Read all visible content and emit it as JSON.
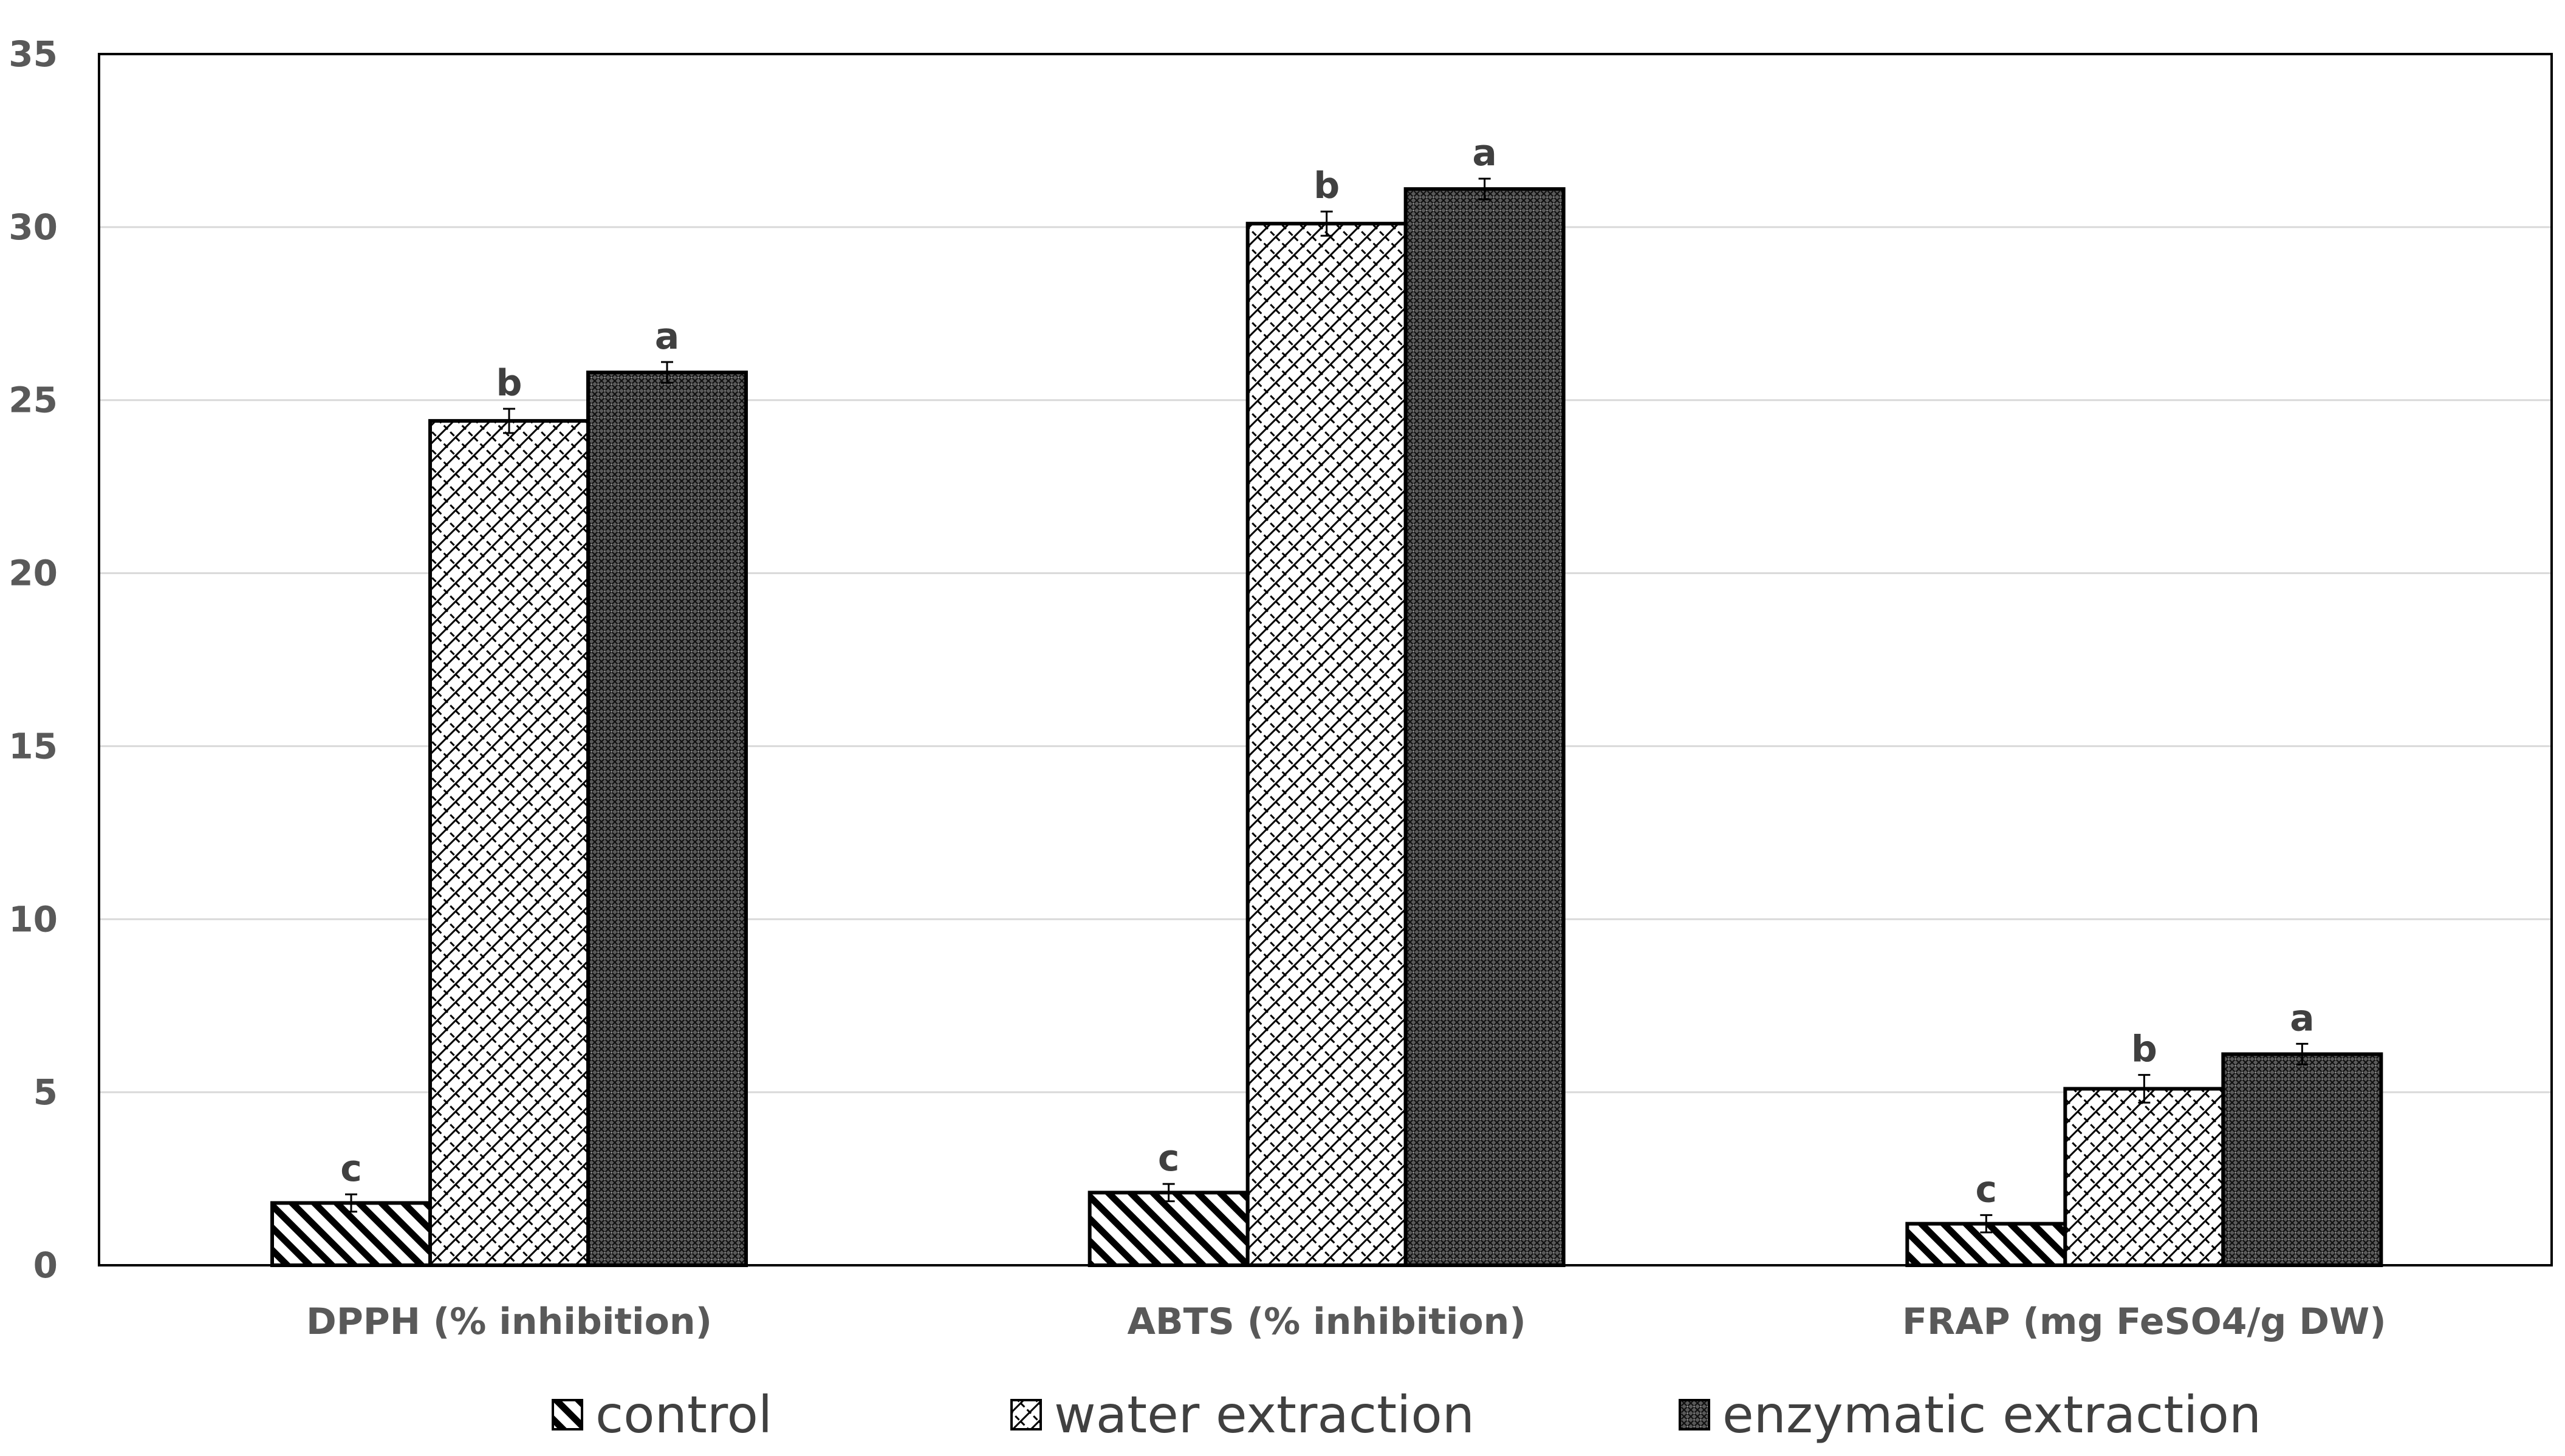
{
  "chart_data": {
    "type": "bar",
    "title": "",
    "xlabel": "",
    "ylabel": "",
    "ylim": [
      0,
      35
    ],
    "yticks": [
      0,
      5,
      10,
      15,
      20,
      25,
      30,
      35
    ],
    "grid": true,
    "legend_position": "bottom",
    "categories": [
      "DPPH (% inhibition)",
      "ABTS (% inhibition)",
      "FRAP (mg FeSO4/g DW)"
    ],
    "series": [
      {
        "name": "control",
        "pattern": "diagonal-stripes",
        "values": [
          1.8,
          2.1,
          1.2
        ],
        "errors": [
          0.25,
          0.25,
          0.25
        ],
        "significance": [
          "c",
          "c",
          "c"
        ]
      },
      {
        "name": "water extraction",
        "pattern": "lattice",
        "values": [
          24.4,
          30.1,
          5.1
        ],
        "errors": [
          0.35,
          0.35,
          0.4
        ],
        "significance": [
          "b",
          "b",
          "b"
        ]
      },
      {
        "name": "enzymatic extraction",
        "pattern": "dense-crosshatch",
        "values": [
          25.8,
          31.1,
          6.1
        ],
        "errors": [
          0.3,
          0.3,
          0.3
        ],
        "significance": [
          "a",
          "a",
          "a"
        ]
      }
    ]
  },
  "colors": {
    "axis": "#000000",
    "grid": "#d9d9d9",
    "bar_outline": "#000000",
    "tick_text": "#595959",
    "legend_text": "#404040"
  }
}
